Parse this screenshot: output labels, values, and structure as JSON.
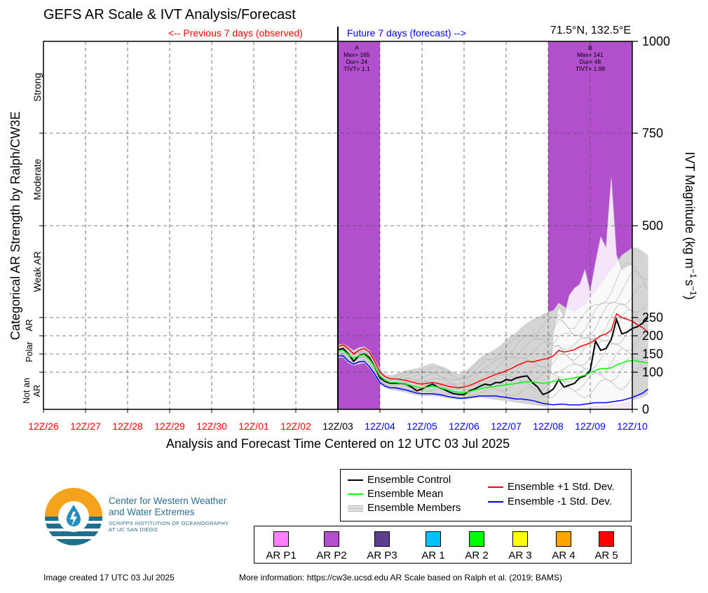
{
  "title": "GEFS AR Scale & IVT Analysis/Forecast",
  "prev_label": "<-- Previous 7 days (observed)",
  "next_label": "Future 7 days (forecast) -->",
  "coords": "71.5°N, 132.5°E",
  "xlabel": "Analysis and Forecast Time Centered on 12 UTC 03 Jul 2025",
  "ylabel_left": "Categorical AR Strength by Ralph/CW3E",
  "ylabel_right_parts": [
    "IVT Magnitude (kg m",
    "−1",
    "s",
    "−1",
    ")"
  ],
  "footer_left": "Image created 17 UTC 03 Jul 2025",
  "footer_right": "More information: https://cw3e.ucsd.edu AR Scale based on Ralph et al. (2019; BAMS)",
  "logo": {
    "line1": "Center for Western Weather",
    "line2": "and Water Extremes",
    "line3": "SCRIPPS INSTITUTION OF OCEANOGRAPHY",
    "line4": "AT UC SAN DIEGO"
  },
  "legend": {
    "control": "Ensemble Control",
    "mean": "Ensemble Mean",
    "members": "Ensemble Members",
    "plus": "Ensemble +1 Std. Dev.",
    "minus": "Ensemble -1 Std. Dev."
  },
  "categories": [
    {
      "label": "AR P1",
      "color": "#ff80ff"
    },
    {
      "label": "AR P2",
      "color": "#b24fcc"
    },
    {
      "label": "AR P3",
      "color": "#5b3f8c"
    },
    {
      "label": "AR 1",
      "color": "#00bfff"
    },
    {
      "label": "AR 2",
      "color": "#00ff00"
    },
    {
      "label": "AR 3",
      "color": "#ffff00"
    },
    {
      "label": "AR 4",
      "color": "#ffa500"
    },
    {
      "label": "AR 5",
      "color": "#ff0000"
    }
  ],
  "chart_data": {
    "type": "line",
    "title": "GEFS AR Scale & IVT Analysis/Forecast",
    "xlabel": "Analysis and Forecast Time Centered on 12 UTC 03 Jul 2025",
    "ylabel": "IVT Magnitude (kg m-1 s-1)",
    "ylim": [
      0,
      1000
    ],
    "grid": true,
    "x_ticks": [
      "12Z/26",
      "12Z/27",
      "12Z/28",
      "12Z/29",
      "12Z/30",
      "12Z/01",
      "12Z/02",
      "12Z/03",
      "12Z/04",
      "12Z/05",
      "12Z/06",
      "12Z/07",
      "12Z/08",
      "12Z/09",
      "12Z/10"
    ],
    "x_tick_colors": [
      "#ff0000",
      "#ff0000",
      "#ff0000",
      "#ff0000",
      "#ff0000",
      "#ff0000",
      "#ff0000",
      "#000000",
      "#0000ff",
      "#0000ff",
      "#0000ff",
      "#0000ff",
      "#0000ff",
      "#0000ff",
      "#0000ff"
    ],
    "y_ticks_right": [
      0,
      100,
      150,
      200,
      250,
      500,
      750,
      1000
    ],
    "y_bands_left": [
      {
        "label": "Not an AR",
        "from": 0,
        "to": 100
      },
      {
        "label": "Polar AR",
        "from": 100,
        "to": 250
      },
      {
        "label": "Weak AR",
        "from": 250,
        "to": 500
      },
      {
        "label": "Moderate",
        "from": 500,
        "to": 750
      },
      {
        "label": "Strong",
        "from": 750,
        "to": 1000
      }
    ],
    "ar_events": [
      {
        "id": "A",
        "max": "Max= 165",
        "dur": "Dur= 24",
        "tivt": "TIVT= 1.1",
        "start_day": 7.0,
        "end_day": 8.0,
        "category": "AR P2",
        "color": "#b24fcc"
      },
      {
        "id": "B",
        "max": "Max= 141",
        "dur": "Dur= 48",
        "tivt": "TIVT= 1.98",
        "start_day": 12.0,
        "end_day": 14.0,
        "category": "AR P2",
        "color": "#b24fcc"
      }
    ],
    "now_day": 7,
    "x_days_start": 7,
    "x_step_days": 0.125,
    "series": [
      {
        "name": "Ensemble Control",
        "color": "#000000",
        "values": [
          162,
          165,
          150,
          130,
          145,
          150,
          140,
          115,
          85,
          75,
          70,
          70,
          70,
          68,
          60,
          50,
          55,
          62,
          68,
          60,
          55,
          48,
          42,
          40,
          40,
          50,
          55,
          62,
          68,
          65,
          72,
          72,
          80,
          78,
          85,
          88,
          90,
          72,
          60,
          40,
          45,
          55,
          80,
          60,
          65,
          70,
          85,
          90,
          105,
          185,
          160,
          165,
          190,
          245,
          205,
          210,
          220,
          225,
          235,
          250
        ]
      },
      {
        "name": "Ensemble Mean",
        "color": "#00ff00",
        "values": [
          158,
          160,
          148,
          138,
          145,
          148,
          135,
          115,
          90,
          78,
          72,
          72,
          70,
          68,
          64,
          60,
          58,
          60,
          62,
          60,
          56,
          52,
          48,
          46,
          45,
          48,
          52,
          55,
          58,
          60,
          62,
          64,
          66,
          68,
          70,
          72,
          75,
          74,
          72,
          70,
          72,
          75,
          78,
          80,
          82,
          85,
          88,
          92,
          98,
          105,
          110,
          110,
          112,
          120,
          125,
          130,
          132,
          130,
          128,
          125
        ]
      },
      {
        "name": "Ensemble +1 Std. Dev.",
        "color": "#ff0000",
        "values": [
          170,
          175,
          165,
          150,
          160,
          165,
          155,
          130,
          100,
          88,
          82,
          82,
          80,
          78,
          74,
          70,
          68,
          70,
          72,
          70,
          66,
          62,
          60,
          58,
          60,
          64,
          70,
          76,
          82,
          88,
          94,
          98,
          104,
          110,
          118,
          124,
          130,
          128,
          132,
          135,
          138,
          145,
          160,
          155,
          158,
          162,
          170,
          175,
          180,
          190,
          200,
          205,
          215,
          260,
          250,
          245,
          240,
          230,
          222,
          210
        ]
      },
      {
        "name": "Ensemble -1 Std. Dev.",
        "color": "#0000ff",
        "values": [
          145,
          145,
          130,
          122,
          128,
          130,
          115,
          95,
          72,
          62,
          58,
          58,
          55,
          52,
          48,
          44,
          42,
          42,
          42,
          40,
          38,
          34,
          32,
          30,
          30,
          32,
          34,
          36,
          36,
          36,
          36,
          34,
          32,
          30,
          28,
          28,
          26,
          24,
          20,
          16,
          14,
          12,
          14,
          14,
          12,
          12,
          12,
          14,
          16,
          18,
          18,
          18,
          20,
          22,
          24,
          28,
          32,
          38,
          44,
          55
        ]
      }
    ],
    "members_envelope": {
      "upper": [
        175,
        178,
        170,
        160,
        168,
        170,
        160,
        135,
        110,
        95,
        92,
        95,
        100,
        105,
        108,
        110,
        115,
        120,
        125,
        120,
        115,
        108,
        100,
        95,
        100,
        112,
        125,
        140,
        150,
        155,
        165,
        175,
        190,
        200,
        210,
        225,
        235,
        245,
        250,
        260,
        265,
        270,
        290,
        280,
        270,
        265,
        275,
        285,
        300,
        320,
        340,
        360,
        380,
        400,
        420,
        430,
        440,
        440,
        430,
        420
      ],
      "lower": [
        140,
        140,
        125,
        118,
        122,
        125,
        110,
        90,
        68,
        58,
        52,
        50,
        48,
        45,
        40,
        38,
        36,
        36,
        36,
        35,
        32,
        30,
        28,
        26,
        26,
        28,
        30,
        32,
        30,
        28,
        26,
        24,
        22,
        20,
        18,
        16,
        14,
        12,
        10,
        8,
        6,
        5,
        5,
        5,
        5,
        5,
        5,
        6,
        8,
        10,
        10,
        10,
        12,
        14,
        16,
        20,
        24,
        28,
        32,
        40
      ]
    },
    "ar_fill_upper_B": [
      0,
      0,
      210,
      280,
      250,
      310,
      330,
      340,
      380,
      320,
      400,
      470,
      440,
      630,
      420,
      380,
      390,
      395,
      330
    ],
    "ar_fill_upper_B_start_day": 11.875,
    "ar_fill_upper_B_step": 0.125
  }
}
